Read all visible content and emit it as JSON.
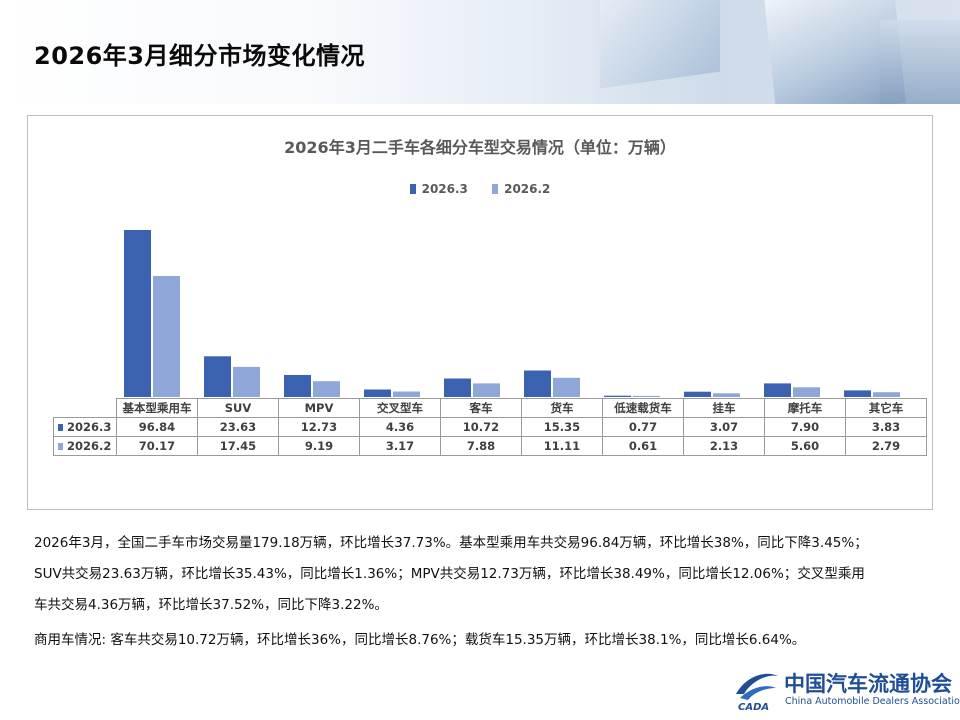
{
  "page_title": "2026年3月细分市场变化情况",
  "chart_data": {
    "type": "bar",
    "title": "2026年3月二手车各细分车型交易情况（单位：万辆）",
    "categories": [
      "基本型乘用车",
      "SUV",
      "MPV",
      "交叉型车",
      "客车",
      "货车",
      "低速载货车",
      "挂车",
      "摩托车",
      "其它车"
    ],
    "series": [
      {
        "name": "2026.3",
        "color": "#3a62b0",
        "values": [
          96.84,
          23.63,
          12.73,
          4.36,
          10.72,
          15.35,
          0.77,
          3.07,
          7.9,
          3.83
        ],
        "labels": [
          "96.84",
          "23.63",
          "12.73",
          "4.36",
          "10.72",
          "15.35",
          "0.77",
          "3.07",
          "7.90",
          "3.83"
        ]
      },
      {
        "name": "2026.2",
        "color": "#8fa6d9",
        "values": [
          70.17,
          17.45,
          9.19,
          3.17,
          7.88,
          11.11,
          0.61,
          2.13,
          5.6,
          2.79
        ],
        "labels": [
          "70.17",
          "17.45",
          "9.19",
          "3.17",
          "7.88",
          "11.11",
          "0.61",
          "2.13",
          "5.60",
          "2.79"
        ]
      }
    ],
    "legend_position": "top-center",
    "grid": false,
    "data_table": true
  },
  "notes": [
    "2026年3月，全国二手车市场交易量179.18万辆，环比增长37.73%。基本型乘用车共交易96.84万辆，环比增长38%，同比下降3.45%；",
    "SUV共交易23.63万辆，环比增长35.43%，同比增长1.36%；MPV共交易12.73万辆，环比增长38.49%，同比增长12.06%；交叉型乘用",
    "车共交易4.36万辆，环比增长37.52%，同比下降3.22%。",
    "商用车情况: 客车共交易10.72万辆，环比增长36%，同比增长8.76%；载货车15.35万辆，环比增长38.1%，同比增长6.64%。"
  ],
  "logo": {
    "name_cn": "中国汽车流通协会",
    "name_en": "China Automobile Dealers Association",
    "mark_text": "CADA"
  }
}
